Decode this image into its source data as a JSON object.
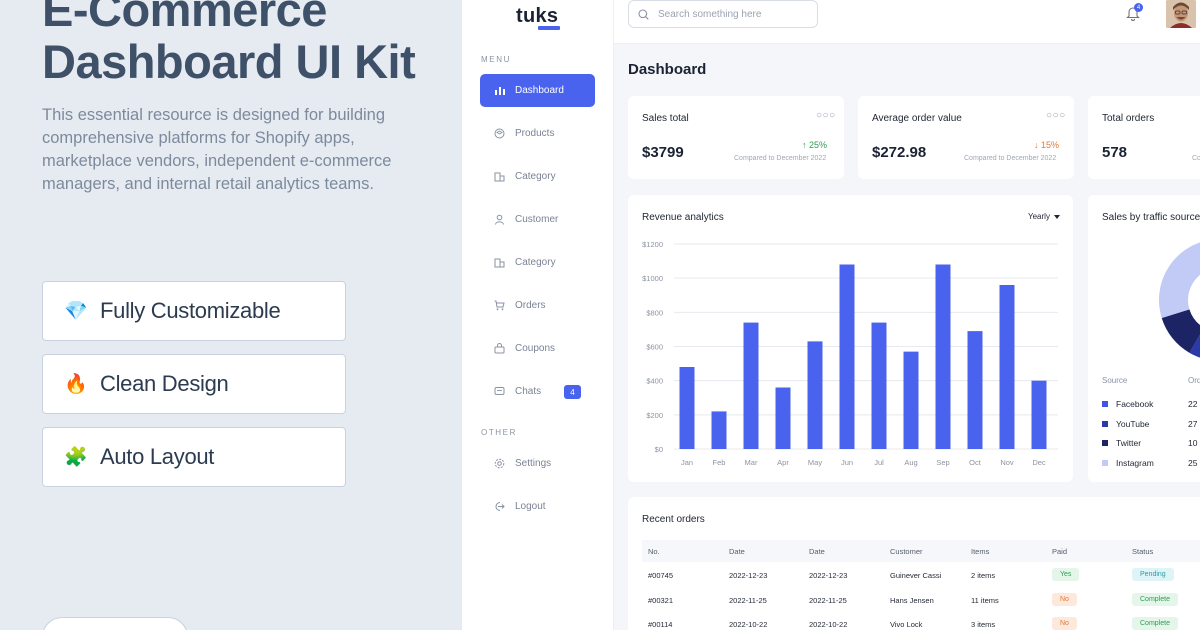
{
  "promo": {
    "title": "E-Commerce Dashboard UI Kit",
    "description": "This essential resource is designed for building comprehensive platforms for Shopify apps, marketplace vendors, independent e-commerce managers, and internal retail analytics teams.",
    "features": [
      {
        "icon": "gem-icon",
        "glyph": "💎",
        "label": "Fully Customizable"
      },
      {
        "icon": "fire-icon",
        "glyph": "🔥",
        "label": "Clean Design"
      },
      {
        "icon": "puzzle-icon",
        "glyph": "🧩",
        "label": "Auto Layout"
      }
    ]
  },
  "sidebar": {
    "logo": "tuks",
    "menu_label": "MENU",
    "other_label": "OTHER",
    "menu_items": [
      {
        "label": "Dashboard",
        "icon": "bar-chart-icon",
        "active": true
      },
      {
        "label": "Products",
        "icon": "box-icon"
      },
      {
        "label": "Category",
        "icon": "category-icon"
      },
      {
        "label": "Customer",
        "icon": "user-icon"
      },
      {
        "label": "Category",
        "icon": "category-icon"
      },
      {
        "label": "Orders",
        "icon": "cart-icon"
      },
      {
        "label": "Coupons",
        "icon": "coupon-icon"
      },
      {
        "label": "Chats",
        "icon": "chat-icon",
        "badge": "4"
      }
    ],
    "other_items": [
      {
        "label": "Settings",
        "icon": "gear-icon"
      },
      {
        "label": "Logout",
        "icon": "logout-icon"
      }
    ]
  },
  "topbar": {
    "search_placeholder": "Search something here",
    "notification_count": "4"
  },
  "dashboard": {
    "title": "Dashboard",
    "stats": [
      {
        "label": "Sales total",
        "value": "$3799",
        "change": "25%",
        "direction": "up",
        "compare": "Compared to December 2022"
      },
      {
        "label": "Average order value",
        "value": "$272.98",
        "change": "15%",
        "direction": "down",
        "compare": "Compared to December 2022"
      },
      {
        "label": "Total orders",
        "value": "578",
        "change": "",
        "direction": "",
        "compare": "Co"
      }
    ],
    "more_glyph": "○○○",
    "revenue": {
      "title": "Revenue analytics",
      "period": "Yearly"
    },
    "traffic": {
      "title": "Sales by traffic source",
      "col_source": "Source",
      "col_orders": "Ord",
      "rows": [
        {
          "source": "Facebook",
          "orders": "22",
          "color": "#3e55e6"
        },
        {
          "source": "YouTube",
          "orders": "27",
          "color": "#2a3aa8"
        },
        {
          "source": "Twitter",
          "orders": "10",
          "color": "#1c2466"
        },
        {
          "source": "Instagram",
          "orders": "25",
          "color": "#c2caf6"
        }
      ]
    },
    "orders": {
      "title": "Recent orders",
      "columns": [
        "No.",
        "Date",
        "Date",
        "Customer",
        "Items",
        "Paid",
        "Status"
      ],
      "rows": [
        {
          "no": "#00745",
          "date1": "2022-12-23",
          "date2": "2022-12-23",
          "customer": "Guinever Cassi",
          "items": "2 items",
          "paid": "Yes",
          "status": "Pending"
        },
        {
          "no": "#00321",
          "date1": "2022-11-25",
          "date2": "2022-11-25",
          "customer": "Hans Jensen",
          "items": "11 items",
          "paid": "No",
          "status": "Complete"
        },
        {
          "no": "#00114",
          "date1": "2022-10-22",
          "date2": "2022-10-22",
          "customer": "Vivo Lock",
          "items": "3 items",
          "paid": "No",
          "status": "Complete"
        }
      ]
    }
  },
  "chart_data": [
    {
      "type": "bar",
      "title": "Revenue analytics",
      "categories": [
        "Jan",
        "Feb",
        "Mar",
        "Apr",
        "May",
        "Jun",
        "Jul",
        "Aug",
        "Sep",
        "Oct",
        "Nov",
        "Dec"
      ],
      "values": [
        480,
        220,
        740,
        360,
        630,
        1080,
        740,
        570,
        1080,
        690,
        960,
        400
      ],
      "yticks": [
        "$0",
        "$200",
        "$400",
        "$600",
        "$800",
        "$1000",
        "$1200"
      ],
      "ylim": [
        0,
        1200
      ],
      "grid": true,
      "bar_color": "#4a63ee"
    },
    {
      "type": "pie",
      "title": "Sales by traffic source",
      "labels": [
        "Facebook",
        "YouTube",
        "Twitter",
        "Instagram"
      ],
      "values": [
        22,
        27,
        10,
        25
      ],
      "colors": [
        "#3e55e6",
        "#2a3aa8",
        "#1c2466",
        "#c2caf6"
      ]
    }
  ]
}
